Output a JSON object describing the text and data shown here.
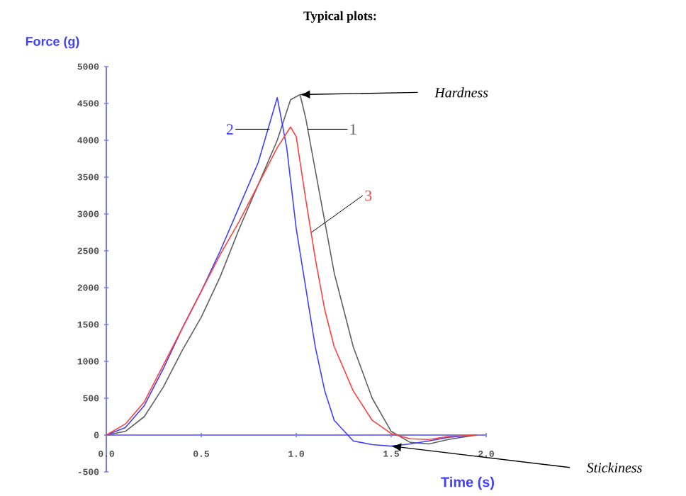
{
  "chart_data": {
    "type": "line",
    "title": "Typical plots:",
    "xlabel": "Time  (s)",
    "ylabel": "Force (g)",
    "xlim": [
      0,
      2
    ],
    "ylim": [
      -500,
      5000
    ],
    "xticks": [
      {
        "value": 0,
        "label": "0.0"
      },
      {
        "value": 0.5,
        "label": "0.5"
      },
      {
        "value": 1,
        "label": "1.0"
      },
      {
        "value": 1.5,
        "label": "1.5"
      },
      {
        "value": 2,
        "label": "2.0"
      }
    ],
    "yticks": [
      -500,
      0,
      500,
      1000,
      1500,
      2000,
      2500,
      3000,
      3500,
      4000,
      4500,
      5000
    ],
    "grid": false,
    "legend": false,
    "marker": "none",
    "line_style": "solid",
    "series": [
      {
        "name": "1",
        "color": "#606060",
        "x": [
          0,
          0.1,
          0.2,
          0.3,
          0.4,
          0.5,
          0.6,
          0.7,
          0.8,
          0.9,
          0.97,
          1.02,
          1.05,
          1.1,
          1.2,
          1.3,
          1.4,
          1.5,
          1.6,
          1.7,
          1.8,
          1.9,
          1.95
        ],
        "values": [
          0,
          50,
          250,
          650,
          1150,
          1600,
          2150,
          2800,
          3400,
          4000,
          4550,
          4620,
          4300,
          3600,
          2200,
          1200,
          500,
          50,
          -100,
          -120,
          -60,
          -20,
          0
        ]
      },
      {
        "name": "2",
        "color": "#4040ff",
        "x": [
          0,
          0.1,
          0.2,
          0.3,
          0.4,
          0.5,
          0.6,
          0.7,
          0.8,
          0.9,
          0.95,
          1.0,
          1.05,
          1.1,
          1.15,
          1.2,
          1.3,
          1.4,
          1.5,
          1.6,
          1.7,
          1.8,
          1.95
        ],
        "values": [
          0,
          100,
          400,
          900,
          1450,
          1950,
          2500,
          3100,
          3700,
          4580,
          3900,
          2800,
          2000,
          1200,
          600,
          200,
          -80,
          -130,
          -150,
          -120,
          -80,
          -30,
          0
        ]
      },
      {
        "name": "3",
        "color": "#ff4040",
        "x": [
          0,
          0.1,
          0.2,
          0.3,
          0.4,
          0.5,
          0.6,
          0.7,
          0.8,
          0.9,
          0.97,
          1.0,
          1.05,
          1.1,
          1.15,
          1.2,
          1.3,
          1.4,
          1.5,
          1.6,
          1.7,
          1.8,
          1.95
        ],
        "values": [
          0,
          150,
          450,
          950,
          1450,
          1950,
          2450,
          2900,
          3400,
          3900,
          4180,
          4050,
          3200,
          2400,
          1700,
          1200,
          600,
          200,
          20,
          -50,
          -60,
          -20,
          0
        ]
      }
    ],
    "annotations": [
      {
        "text": "Hardness",
        "x": 1.02,
        "y": 4620
      },
      {
        "text": "Stickiness",
        "x": 1.5,
        "y": -150
      }
    ]
  }
}
